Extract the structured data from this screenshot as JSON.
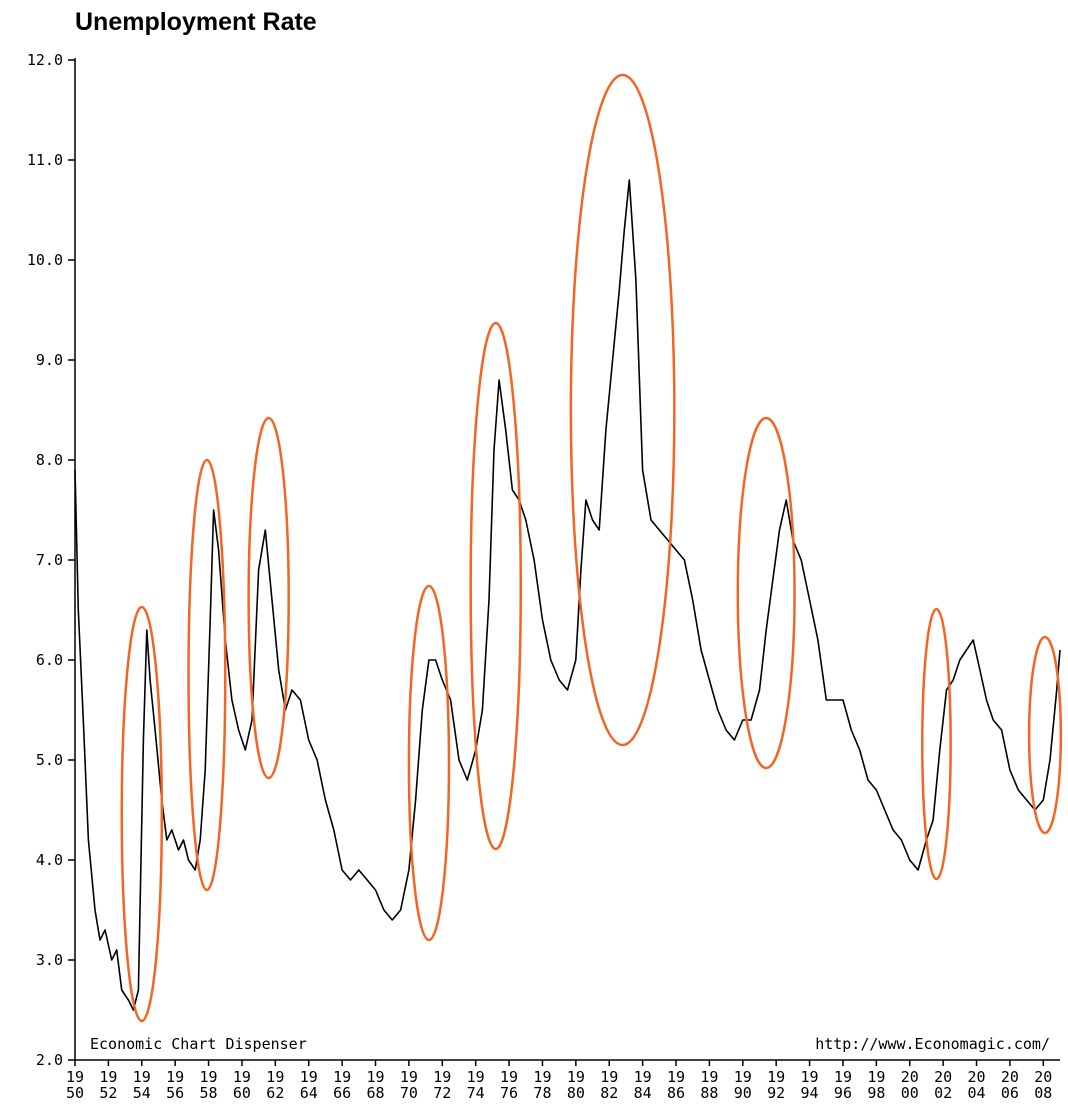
{
  "chart_data": {
    "type": "line",
    "title": "Unemployment Rate",
    "xlabel": "",
    "ylabel": "",
    "xlim": [
      1950,
      2009
    ],
    "ylim": [
      2.0,
      12.0
    ],
    "yticks": [
      "2.0",
      "3.0",
      "4.0",
      "5.0",
      "6.0",
      "7.0",
      "8.0",
      "9.0",
      "10.0",
      "11.0",
      "12.0"
    ],
    "xticks": [
      {
        "top": "19",
        "bottom": "50",
        "year": 1950
      },
      {
        "top": "19",
        "bottom": "52",
        "year": 1952
      },
      {
        "top": "19",
        "bottom": "54",
        "year": 1954
      },
      {
        "top": "19",
        "bottom": "56",
        "year": 1956
      },
      {
        "top": "19",
        "bottom": "58",
        "year": 1958
      },
      {
        "top": "19",
        "bottom": "60",
        "year": 1960
      },
      {
        "top": "19",
        "bottom": "62",
        "year": 1962
      },
      {
        "top": "19",
        "bottom": "64",
        "year": 1964
      },
      {
        "top": "19",
        "bottom": "66",
        "year": 1966
      },
      {
        "top": "19",
        "bottom": "68",
        "year": 1968
      },
      {
        "top": "19",
        "bottom": "70",
        "year": 1970
      },
      {
        "top": "19",
        "bottom": "72",
        "year": 1972
      },
      {
        "top": "19",
        "bottom": "74",
        "year": 1974
      },
      {
        "top": "19",
        "bottom": "76",
        "year": 1976
      },
      {
        "top": "19",
        "bottom": "78",
        "year": 1978
      },
      {
        "top": "19",
        "bottom": "80",
        "year": 1980
      },
      {
        "top": "19",
        "bottom": "82",
        "year": 1982
      },
      {
        "top": "19",
        "bottom": "84",
        "year": 1984
      },
      {
        "top": "19",
        "bottom": "86",
        "year": 1986
      },
      {
        "top": "19",
        "bottom": "88",
        "year": 1988
      },
      {
        "top": "19",
        "bottom": "90",
        "year": 1990
      },
      {
        "top": "19",
        "bottom": "92",
        "year": 1992
      },
      {
        "top": "19",
        "bottom": "94",
        "year": 1994
      },
      {
        "top": "19",
        "bottom": "96",
        "year": 1996
      },
      {
        "top": "19",
        "bottom": "98",
        "year": 1998
      },
      {
        "top": "20",
        "bottom": "00",
        "year": 2000
      },
      {
        "top": "20",
        "bottom": "02",
        "year": 2002
      },
      {
        "top": "20",
        "bottom": "04",
        "year": 2004
      },
      {
        "top": "20",
        "bottom": "06",
        "year": 2006
      },
      {
        "top": "20",
        "bottom": "08",
        "year": 2008
      }
    ],
    "series": [
      {
        "x": [
          1950.0,
          1950.2,
          1950.5,
          1950.8,
          1951.2,
          1951.5,
          1951.8,
          1952.2,
          1952.5,
          1952.8,
          1953.2,
          1953.5,
          1953.8,
          1954.1,
          1954.3,
          1954.5,
          1954.8,
          1955.2,
          1955.5,
          1955.8,
          1956.2,
          1956.5,
          1956.8,
          1957.2,
          1957.5,
          1957.8,
          1958.1,
          1958.3,
          1958.6,
          1959.0,
          1959.4,
          1959.8,
          1960.2,
          1960.6,
          1961.0,
          1961.4,
          1961.8,
          1962.2,
          1962.6,
          1963.0,
          1963.5,
          1964.0,
          1964.5,
          1965.0,
          1965.5,
          1966.0,
          1966.5,
          1967.0,
          1967.5,
          1968.0,
          1968.5,
          1969.0,
          1969.5,
          1970.0,
          1970.4,
          1970.8,
          1971.2,
          1971.6,
          1972.0,
          1972.5,
          1973.0,
          1973.5,
          1974.0,
          1974.4,
          1974.8,
          1975.1,
          1975.4,
          1975.8,
          1976.2,
          1976.6,
          1977.0,
          1977.5,
          1978.0,
          1978.5,
          1979.0,
          1979.5,
          1980.0,
          1980.3,
          1980.6,
          1981.0,
          1981.4,
          1981.8,
          1982.2,
          1982.6,
          1982.9,
          1983.2,
          1983.6,
          1984.0,
          1984.5,
          1985.0,
          1985.5,
          1986.0,
          1986.5,
          1987.0,
          1987.5,
          1988.0,
          1988.5,
          1989.0,
          1989.5,
          1990.0,
          1990.5,
          1991.0,
          1991.4,
          1991.8,
          1992.2,
          1992.6,
          1993.0,
          1993.5,
          1994.0,
          1994.5,
          1995.0,
          1995.5,
          1996.0,
          1996.5,
          1997.0,
          1997.5,
          1998.0,
          1998.5,
          1999.0,
          1999.5,
          2000.0,
          2000.5,
          2001.0,
          2001.4,
          2001.8,
          2002.2,
          2002.6,
          2003.0,
          2003.4,
          2003.8,
          2004.2,
          2004.6,
          2005.0,
          2005.5,
          2006.0,
          2006.5,
          2007.0,
          2007.5,
          2008.0,
          2008.4,
          2008.8,
          2009.0
        ],
        "values": [
          7.9,
          6.5,
          5.4,
          4.2,
          3.5,
          3.2,
          3.3,
          3.0,
          3.1,
          2.7,
          2.6,
          2.5,
          2.7,
          5.2,
          6.3,
          5.8,
          5.3,
          4.6,
          4.2,
          4.3,
          4.1,
          4.2,
          4.0,
          3.9,
          4.2,
          4.9,
          6.4,
          7.5,
          7.1,
          6.2,
          5.6,
          5.3,
          5.1,
          5.4,
          6.9,
          7.3,
          6.6,
          5.9,
          5.5,
          5.7,
          5.6,
          5.2,
          5.0,
          4.6,
          4.3,
          3.9,
          3.8,
          3.9,
          3.8,
          3.7,
          3.5,
          3.4,
          3.5,
          3.9,
          4.6,
          5.5,
          6.0,
          6.0,
          5.8,
          5.6,
          5.0,
          4.8,
          5.1,
          5.5,
          6.6,
          8.1,
          8.8,
          8.3,
          7.7,
          7.6,
          7.4,
          7.0,
          6.4,
          6.0,
          5.8,
          5.7,
          6.0,
          6.9,
          7.6,
          7.4,
          7.3,
          8.3,
          9.0,
          9.7,
          10.3,
          10.8,
          9.8,
          7.9,
          7.4,
          7.3,
          7.2,
          7.1,
          7.0,
          6.6,
          6.1,
          5.8,
          5.5,
          5.3,
          5.2,
          5.4,
          5.4,
          5.7,
          6.3,
          6.8,
          7.3,
          7.6,
          7.2,
          7.0,
          6.6,
          6.2,
          5.6,
          5.6,
          5.6,
          5.3,
          5.1,
          4.8,
          4.7,
          4.5,
          4.3,
          4.2,
          4.0,
          3.9,
          4.2,
          4.4,
          5.1,
          5.7,
          5.8,
          6.0,
          6.1,
          6.2,
          5.9,
          5.6,
          5.4,
          5.3,
          4.9,
          4.7,
          4.6,
          4.5,
          4.6,
          5.0,
          5.7,
          6.1
        ]
      }
    ],
    "highlights": [
      {
        "center_year": 1954.0,
        "center_value": 4.46,
        "year_radius": 1.2,
        "value_radius": 2.07
      },
      {
        "center_year": 1957.9,
        "center_value": 5.85,
        "year_radius": 1.1,
        "value_radius": 2.15
      },
      {
        "center_year": 1961.6,
        "center_value": 6.62,
        "year_radius": 1.2,
        "value_radius": 1.8
      },
      {
        "center_year": 1971.2,
        "center_value": 4.97,
        "year_radius": 1.2,
        "value_radius": 1.77
      },
      {
        "center_year": 1975.2,
        "center_value": 6.74,
        "year_radius": 1.5,
        "value_radius": 2.63
      },
      {
        "center_year": 1982.8,
        "center_value": 8.5,
        "year_radius": 3.1,
        "value_radius": 3.35
      },
      {
        "center_year": 1991.4,
        "center_value": 6.67,
        "year_radius": 1.7,
        "value_radius": 1.75
      },
      {
        "center_year": 2001.6,
        "center_value": 5.16,
        "year_radius": 0.85,
        "value_radius": 1.35
      },
      {
        "center_year": 2008.1,
        "center_value": 5.25,
        "year_radius": 0.95,
        "value_radius": 0.98
      }
    ],
    "grid": false,
    "legend": "none",
    "line_color": "#000000",
    "highlight_color": "#f26522",
    "footer_left": "Economic Chart Dispenser",
    "footer_right": "http://www.Economagic.com/"
  }
}
